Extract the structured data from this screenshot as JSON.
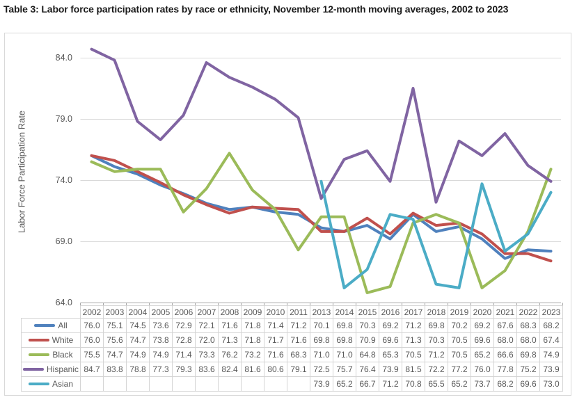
{
  "chart_data": {
    "type": "line",
    "title": "Table 3: Labor force participation rates by race or ethnicity, November 12-month moving averages, 2002 to 2023",
    "ylabel": "Labor Force Participation Rate",
    "xlabel": "",
    "categories": [
      "2002",
      "2003",
      "2004",
      "2005",
      "2006",
      "2007",
      "2008",
      "2009",
      "2010",
      "2011",
      "2013",
      "2014",
      "2015",
      "2016",
      "2017",
      "2018",
      "2019",
      "2020",
      "2021",
      "2022",
      "2023"
    ],
    "ylim": [
      64,
      85.5
    ],
    "yticks": [
      64,
      69,
      74,
      79,
      84
    ],
    "ytick_labels": [
      "64.0",
      "69.0",
      "74.0",
      "79.0",
      "84.0"
    ],
    "grid": "horizontal",
    "legend_position": "data-table-row-labels",
    "series": [
      {
        "name": "All",
        "color": "#4F81BD",
        "values": [
          76.0,
          75.1,
          74.5,
          73.6,
          72.9,
          72.1,
          71.6,
          71.8,
          71.4,
          71.2,
          70.1,
          69.8,
          70.3,
          69.2,
          71.2,
          69.8,
          70.2,
          69.2,
          67.6,
          68.3,
          68.2
        ]
      },
      {
        "name": "White",
        "color": "#C0504D",
        "values": [
          76.0,
          75.6,
          74.7,
          73.8,
          72.8,
          72.0,
          71.3,
          71.8,
          71.7,
          71.6,
          69.8,
          69.8,
          70.9,
          69.6,
          71.3,
          70.3,
          70.5,
          69.6,
          68.0,
          68.0,
          67.4
        ]
      },
      {
        "name": "Black",
        "color": "#9BBB59",
        "values": [
          75.5,
          74.7,
          74.9,
          74.9,
          71.4,
          73.3,
          76.2,
          73.2,
          71.6,
          68.3,
          71.0,
          71.0,
          64.8,
          65.3,
          70.5,
          71.2,
          70.5,
          65.2,
          66.6,
          69.8,
          74.9
        ]
      },
      {
        "name": "Hispanic",
        "color": "#8064A2",
        "values": [
          84.7,
          83.8,
          78.8,
          77.3,
          79.3,
          83.6,
          82.4,
          81.6,
          80.6,
          79.1,
          72.5,
          75.7,
          76.4,
          73.9,
          81.5,
          72.2,
          77.2,
          76.0,
          77.8,
          75.2,
          73.9
        ]
      },
      {
        "name": "Asian",
        "color": "#4BACC6",
        "values": [
          null,
          null,
          null,
          null,
          null,
          null,
          null,
          null,
          null,
          null,
          73.9,
          65.2,
          66.7,
          71.2,
          70.8,
          65.5,
          65.2,
          73.7,
          68.2,
          69.6,
          73.0
        ]
      }
    ],
    "colors": {
      "gridline": "#d9d9d9",
      "axis": "#a6a6a6",
      "text": "#595959",
      "table_border": "#d4d4d4"
    }
  }
}
